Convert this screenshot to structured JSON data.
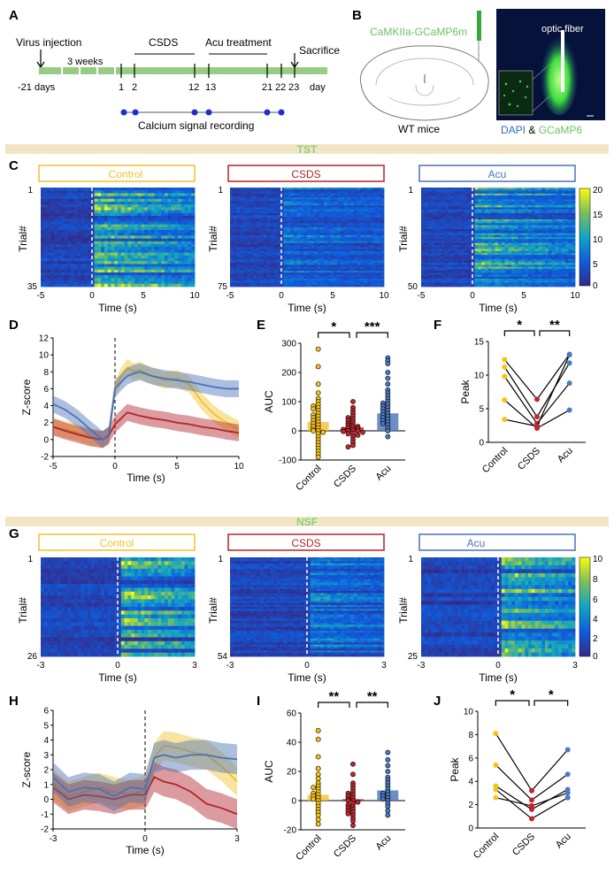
{
  "figure": {
    "panel_letters": [
      "A",
      "B",
      "C",
      "D",
      "E",
      "F",
      "G",
      "H",
      "I",
      "J"
    ],
    "section_tst": "TST",
    "section_nsf": "NSF",
    "colors": {
      "control": "#f2c12e",
      "control_dot": "#f6c315",
      "csds": "#b2232a",
      "csds_dot": "#c0262d",
      "acu": "#4a72b8",
      "acu_dot": "#4b79c2",
      "band": "#f1e6c3",
      "band_text": "#8ccf7c",
      "timeline": "#96cc83",
      "rec_dot": "#1e2fd0",
      "fiber": "#3aa53d"
    },
    "panel_a": {
      "virus": "Virus injection",
      "weeks": "3 weeks",
      "csds": "CSDS",
      "acu": "Acu treatment",
      "sacrifice": "Sacrifice",
      "ticks": [
        "-21 days",
        "1",
        "2",
        "12",
        "13",
        "21",
        "22",
        "23",
        "day"
      ],
      "recording": "Calcium signal recording"
    },
    "panel_b": {
      "virus_label": "CaMKIIa-GCaMP6m",
      "mice": "WT mice",
      "fiber": "optic fiber",
      "dapi": "DAPI",
      "amp": " & ",
      "gcamp": "GCaMP6"
    },
    "heatmaps_tst": [
      {
        "title": "Control",
        "n_first": "1",
        "n_last": "35",
        "color": "control"
      },
      {
        "title": "CSDS",
        "n_first": "1",
        "n_last": "75",
        "color": "csds"
      },
      {
        "title": "Acu",
        "n_first": "1",
        "n_last": "50",
        "color": "acu"
      }
    ],
    "heatmaps_nsf": [
      {
        "title": "Control",
        "n_first": "1",
        "n_last": "26",
        "color": "control"
      },
      {
        "title": "CSDS",
        "n_first": "1",
        "n_last": "54",
        "color": "csds"
      },
      {
        "title": "Acu",
        "n_first": "1",
        "n_last": "25",
        "color": "acu"
      }
    ],
    "heat_ticks_tst": [
      "-5",
      "0",
      "5",
      "10"
    ],
    "heat_ticks_nsf": [
      "-3",
      "0",
      "3"
    ],
    "trial_label": "Trial#",
    "time_label": "Time (s)",
    "colorbar_tst": [
      "20",
      "15",
      "10",
      "5",
      "0"
    ],
    "colorbar_nsf": [
      "10",
      "8",
      "6",
      "4",
      "2",
      "0"
    ]
  },
  "chart_data": [
    {
      "id": "D",
      "type": "line",
      "xlabel": "Time (s)",
      "ylabel": "Z-score",
      "xlim": [
        -5,
        10
      ],
      "ylim": [
        -2,
        12
      ],
      "xticks": [
        "-5",
        "0",
        "5",
        "10"
      ],
      "yticks": [
        "-2",
        "0",
        "2",
        "4",
        "6",
        "8",
        "10",
        "12"
      ],
      "x": [
        -5,
        -4,
        -3,
        -2,
        -1,
        -0.5,
        0,
        0.5,
        1,
        1.5,
        2,
        3,
        4,
        5,
        6,
        7,
        8,
        9,
        10
      ],
      "series": [
        {
          "name": "Control",
          "values": [
            1.5,
            1.2,
            0.8,
            0.3,
            0,
            0.3,
            6.0,
            7.5,
            8.5,
            8.0,
            8.2,
            7.5,
            7.0,
            7.2,
            6.5,
            4.5,
            3.0,
            2.0,
            1.2
          ]
        },
        {
          "name": "CSDS",
          "values": [
            1.5,
            1.0,
            0.6,
            0.2,
            0,
            0.5,
            1.8,
            2.5,
            3.2,
            3.0,
            2.8,
            2.5,
            2.3,
            2.0,
            1.8,
            1.5,
            1.3,
            1.0,
            0.8
          ]
        },
        {
          "name": "Acu",
          "values": [
            4.2,
            3.5,
            2.5,
            1.2,
            0,
            0.6,
            6.0,
            6.8,
            7.5,
            7.8,
            8.0,
            7.5,
            7.2,
            7.0,
            6.8,
            6.5,
            6.2,
            6.0,
            6.0
          ]
        }
      ]
    },
    {
      "id": "E",
      "type": "scatter",
      "ylabel": "AUC",
      "ylim": [
        -100,
        300
      ],
      "yticks": [
        "-100",
        "0",
        "100",
        "200",
        "300"
      ],
      "categories": [
        "Control",
        "CSDS",
        "Acu"
      ],
      "means": [
        30,
        12,
        60
      ],
      "points": [
        [
          280,
          220,
          160,
          130,
          110,
          100,
          90,
          85,
          80,
          75,
          70,
          60,
          55,
          50,
          45,
          40,
          35,
          30,
          25,
          20,
          15,
          10,
          5,
          0,
          0,
          -5,
          -10,
          -20,
          -30,
          -40,
          -50,
          -60,
          -70,
          -80,
          -90
        ],
        [
          100,
          80,
          70,
          60,
          50,
          45,
          40,
          35,
          30,
          25,
          20,
          18,
          15,
          12,
          10,
          8,
          5,
          3,
          0,
          0,
          -2,
          -5,
          -8,
          -10,
          -15,
          -20,
          -30,
          -40,
          -50,
          -55
        ],
        [
          250,
          240,
          230,
          200,
          180,
          160,
          140,
          130,
          120,
          110,
          100,
          95,
          90,
          85,
          80,
          75,
          70,
          65,
          60,
          55,
          50,
          45,
          40,
          35,
          30,
          25,
          20,
          10,
          0,
          -20
        ]
      ],
      "significance": [
        {
          "pair": [
            "Control",
            "CSDS"
          ],
          "label": "*"
        },
        {
          "pair": [
            "CSDS",
            "Acu"
          ],
          "label": "***"
        }
      ]
    },
    {
      "id": "F",
      "type": "line",
      "ylabel": "Peak",
      "ylim": [
        0,
        15
      ],
      "yticks": [
        "0",
        "5",
        "10",
        "15"
      ],
      "categories": [
        "Control",
        "CSDS",
        "Acu"
      ],
      "pairs": [
        [
          12.3,
          6.4,
          13.1
        ],
        [
          11.2,
          3.8,
          11.8
        ],
        [
          9.8,
          2.8,
          8.8
        ],
        [
          6.3,
          2.1,
          4.8
        ],
        [
          3.4,
          2.4,
          13.0
        ]
      ],
      "significance": [
        {
          "pair": [
            "Control",
            "CSDS"
          ],
          "label": "*"
        },
        {
          "pair": [
            "CSDS",
            "Acu"
          ],
          "label": "**"
        }
      ]
    },
    {
      "id": "H",
      "type": "line",
      "xlabel": "Time (s)",
      "ylabel": "Z-score",
      "xlim": [
        -3,
        3
      ],
      "ylim": [
        -2,
        6
      ],
      "xticks": [
        "-3",
        "0",
        "3"
      ],
      "yticks": [
        "-2",
        "-1",
        "0",
        "1",
        "2",
        "3",
        "4",
        "5",
        "6"
      ],
      "x": [
        -3,
        -2.5,
        -2,
        -1.5,
        -1,
        -0.5,
        0,
        0.3,
        0.6,
        1,
        1.5,
        2,
        2.5,
        3
      ],
      "series": [
        {
          "name": "Control",
          "values": [
            1.0,
            0.2,
            0.5,
            0.8,
            0.5,
            0.3,
            0.6,
            2.8,
            3.6,
            3.5,
            3.2,
            3.0,
            2.2,
            1.2
          ]
        },
        {
          "name": "CSDS",
          "values": [
            0.8,
            0,
            0.3,
            0.2,
            0,
            0.3,
            0.3,
            1.5,
            1.2,
            1.0,
            0.5,
            -0.3,
            -0.6,
            -1.0
          ]
        },
        {
          "name": "Acu",
          "values": [
            1.5,
            0.5,
            0.8,
            0.7,
            0.2,
            0.8,
            0.7,
            2.8,
            3.0,
            2.8,
            3.0,
            3.0,
            2.8,
            2.7
          ]
        }
      ]
    },
    {
      "id": "I",
      "type": "scatter",
      "ylabel": "AUC",
      "ylim": [
        -20,
        60
      ],
      "yticks": [
        "-20",
        "0",
        "20",
        "40",
        "60"
      ],
      "categories": [
        "Control",
        "CSDS",
        "Acu"
      ],
      "means": [
        4,
        1,
        7
      ],
      "points": [
        [
          48,
          42,
          30,
          22,
          18,
          15,
          12,
          10,
          9,
          8,
          6,
          5,
          4,
          3,
          2,
          1,
          0,
          -2,
          -4,
          -6,
          -8,
          -10,
          -13,
          -16
        ],
        [
          25,
          18,
          12,
          10,
          8,
          6,
          5,
          4,
          3,
          2,
          1,
          0,
          0,
          -1,
          -2,
          -3,
          -4,
          -5,
          -6,
          -7,
          -8,
          -9,
          -10,
          -12,
          -14,
          -17
        ],
        [
          33,
          28,
          24,
          20,
          16,
          14,
          12,
          10,
          8,
          6,
          5,
          4,
          3,
          2,
          1,
          0,
          -2,
          -4,
          -7,
          -10
        ]
      ],
      "significance": [
        {
          "pair": [
            "Control",
            "CSDS"
          ],
          "label": "**"
        },
        {
          "pair": [
            "CSDS",
            "Acu"
          ],
          "label": "**"
        }
      ]
    },
    {
      "id": "J",
      "type": "line",
      "ylabel": "Peak",
      "ylim": [
        0,
        10
      ],
      "yticks": [
        "0",
        "2",
        "4",
        "6",
        "8",
        "10"
      ],
      "categories": [
        "Control",
        "CSDS",
        "Acu"
      ],
      "pairs": [
        [
          8.1,
          3.2,
          6.7
        ],
        [
          5.4,
          2.4,
          4.6
        ],
        [
          3.6,
          1.6,
          3.3
        ],
        [
          3.3,
          0.8,
          2.6
        ],
        [
          2.6,
          1.9,
          3.0
        ]
      ],
      "significance": [
        {
          "pair": [
            "Control",
            "CSDS"
          ],
          "label": "*"
        },
        {
          "pair": [
            "CSDS",
            "Acu"
          ],
          "label": "*"
        }
      ]
    }
  ]
}
